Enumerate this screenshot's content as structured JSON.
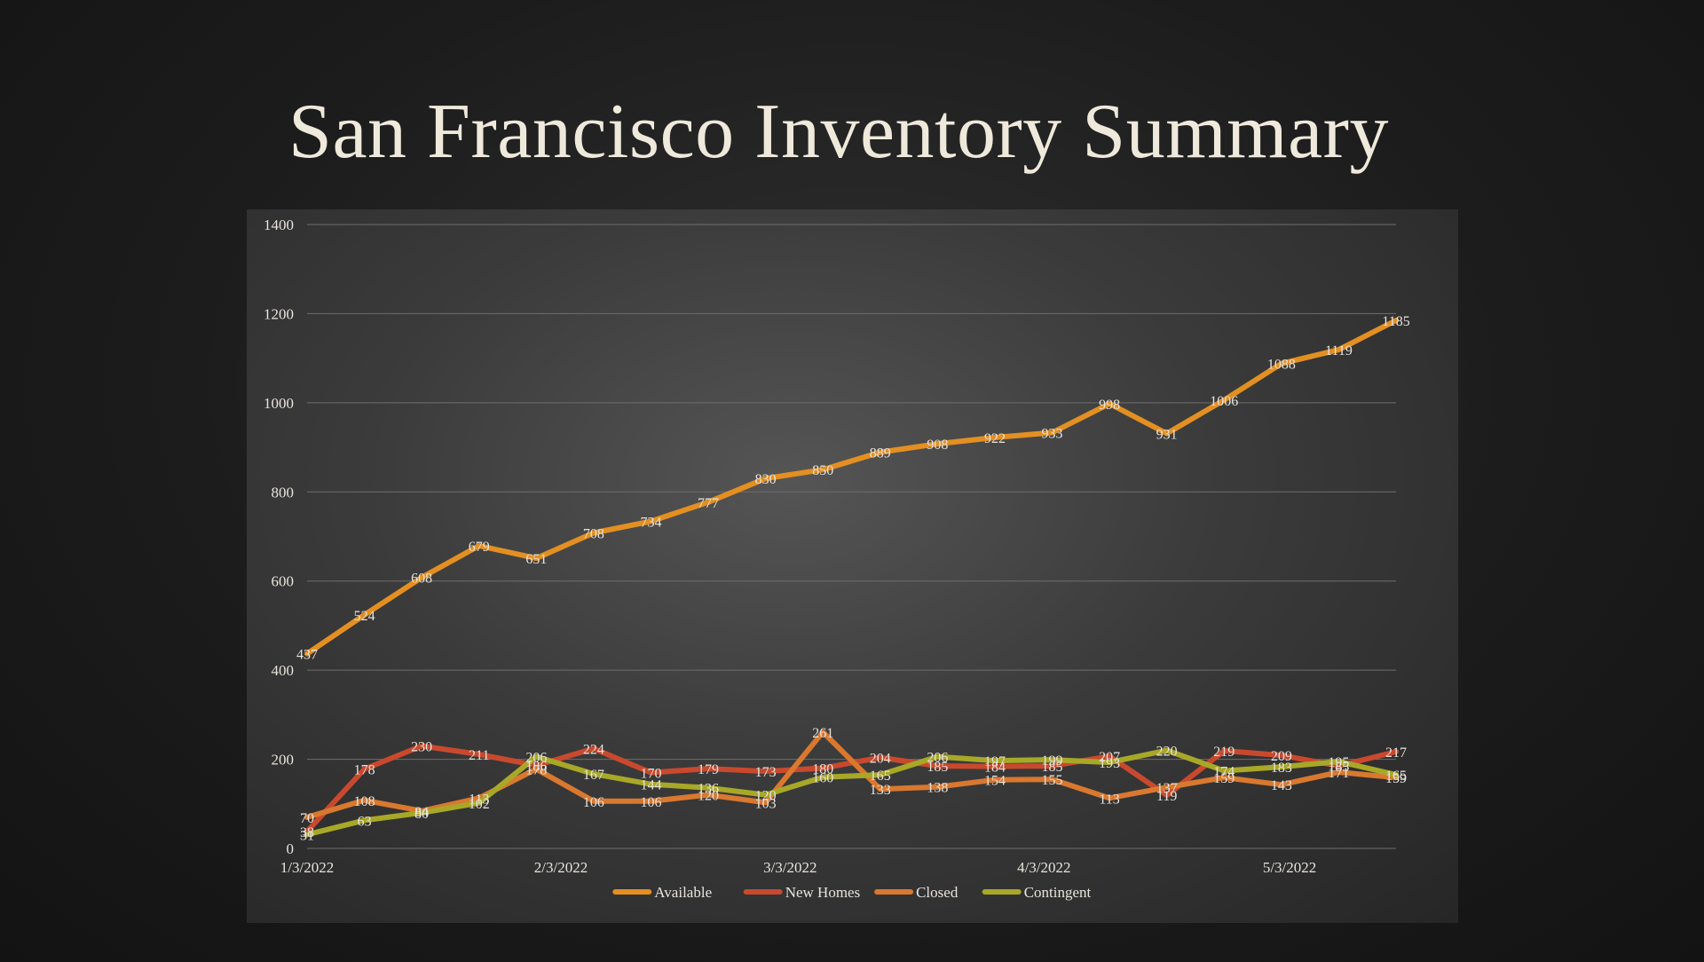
{
  "slide": {
    "title": "San Francisco Inventory Summary"
  },
  "chart_data": {
    "type": "line",
    "title": "",
    "xlabel": "",
    "ylabel": "",
    "ylim": [
      0,
      1400
    ],
    "yticks": [
      0,
      200,
      400,
      600,
      800,
      1000,
      1200,
      1400
    ],
    "grid": true,
    "legend_position": "bottom",
    "x_tick_labels": [
      "1/3/2022",
      "2/3/2022",
      "3/3/2022",
      "4/3/2022",
      "5/3/2022"
    ],
    "x": [
      "1/3/2022",
      "1/10/2022",
      "1/17/2022",
      "1/24/2022",
      "1/31/2022",
      "2/7/2022",
      "2/14/2022",
      "2/21/2022",
      "2/28/2022",
      "3/7/2022",
      "3/14/2022",
      "3/21/2022",
      "3/28/2022",
      "4/4/2022",
      "4/11/2022",
      "4/18/2022",
      "4/25/2022",
      "5/2/2022",
      "5/9/2022",
      "5/16/2022"
    ],
    "series": [
      {
        "name": "Available",
        "color": "#e38f22",
        "values": [
          437,
          524,
          608,
          679,
          651,
          708,
          734,
          777,
          830,
          850,
          889,
          908,
          922,
          933,
          998,
          931,
          1006,
          1088,
          1119,
          1185
        ]
      },
      {
        "name": "New Homes",
        "color": "#c9492e",
        "values": [
          38,
          178,
          230,
          211,
          186,
          224,
          170,
          179,
          173,
          180,
          204,
          185,
          184,
          185,
          207,
          119,
          219,
          209,
          185,
          217
        ]
      },
      {
        "name": "Closed",
        "color": "#d9782f",
        "values": [
          70,
          108,
          84,
          113,
          178,
          106,
          106,
          120,
          103,
          261,
          133,
          138,
          154,
          155,
          113,
          137,
          159,
          143,
          171,
          159
        ]
      },
      {
        "name": "Contingent",
        "color": "#a8a828",
        "values": [
          31,
          63,
          80,
          102,
          206,
          167,
          144,
          136,
          120,
          160,
          165,
          206,
          197,
          199,
          193,
          220,
          174,
          183,
          195,
          165
        ]
      }
    ]
  }
}
